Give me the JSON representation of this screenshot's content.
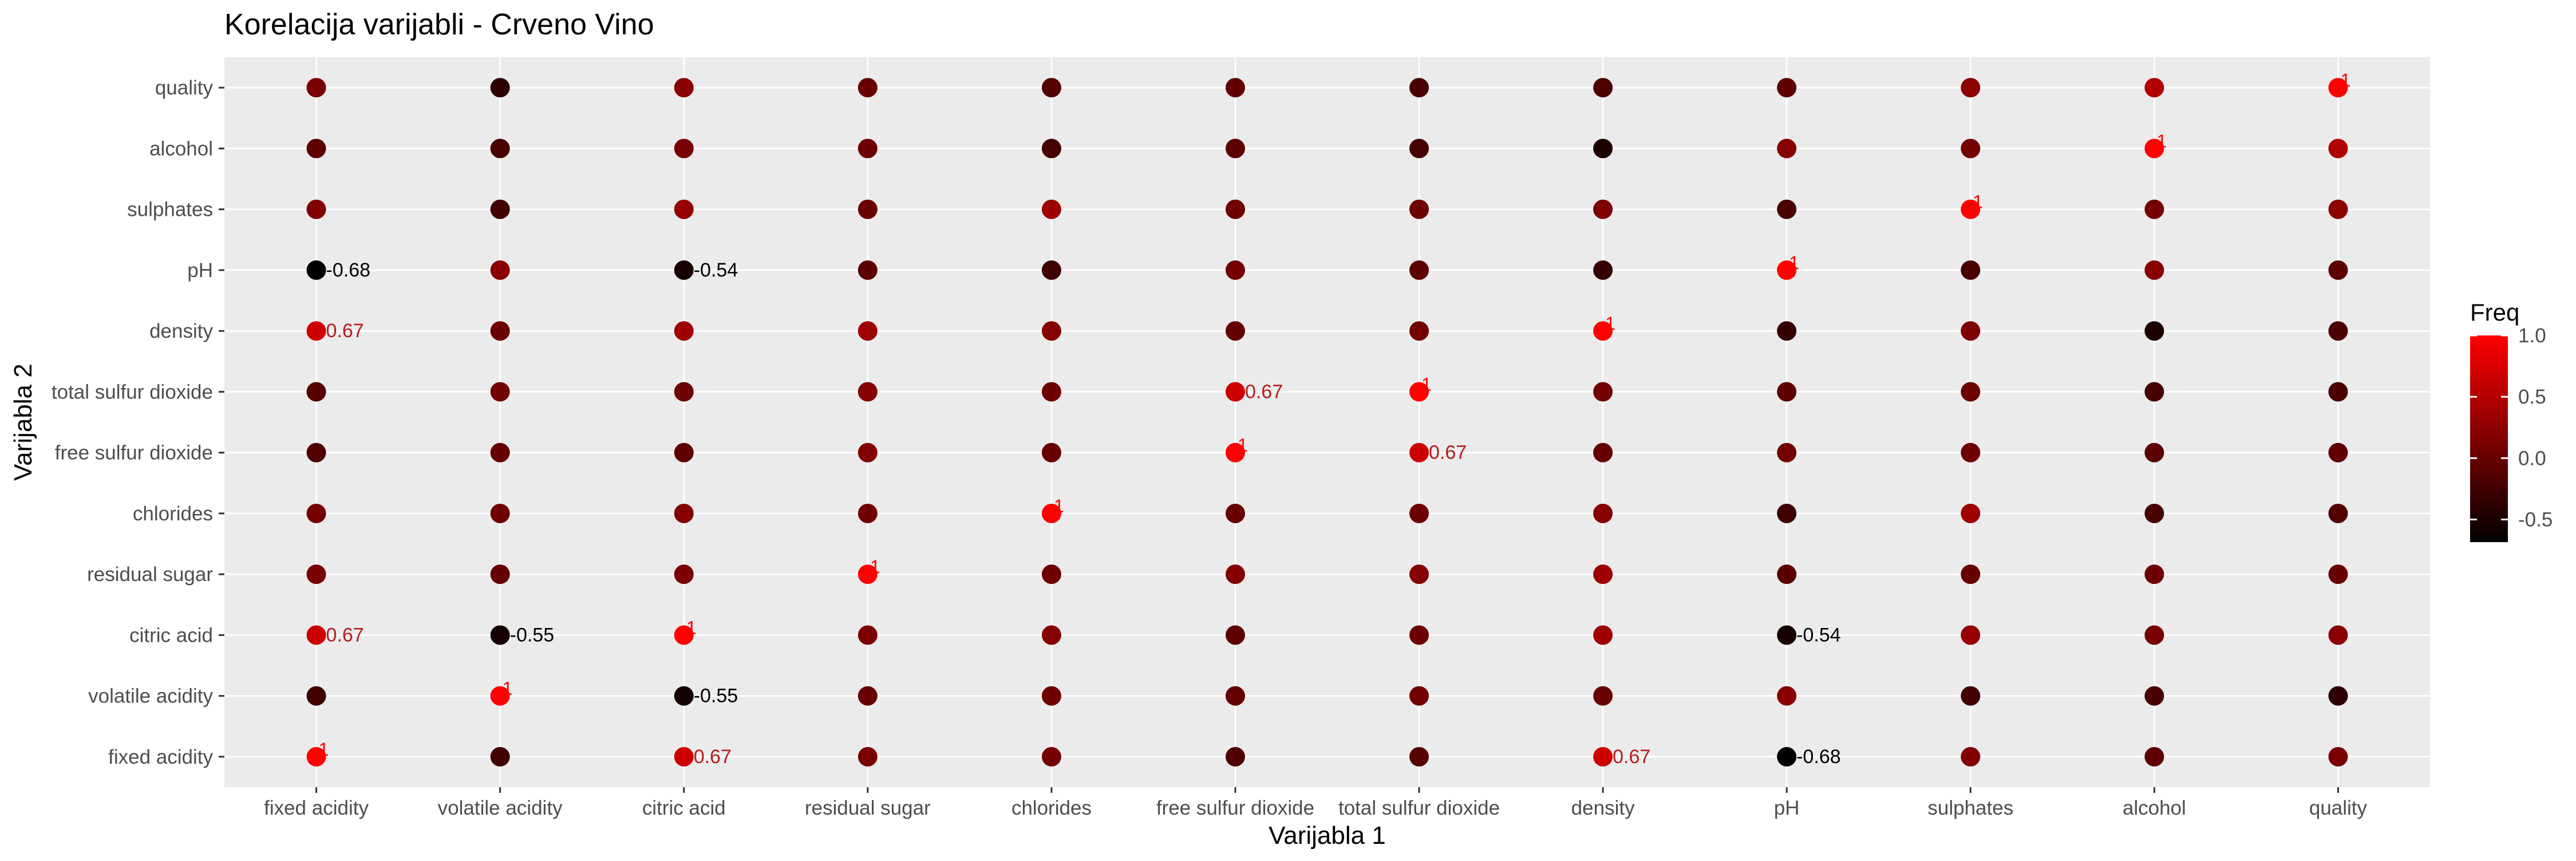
{
  "chart_data": {
    "type": "scatter",
    "title": "Korelacija varijabli - Crveno Vino",
    "xlabel": "Varijabla 1",
    "ylabel": "Varijabla 2",
    "variables": [
      "fixed acidity",
      "volatile acidity",
      "citric acid",
      "residual sugar",
      "chlorides",
      "free sulfur dioxide",
      "total sulfur dioxide",
      "density",
      "pH",
      "sulphates",
      "alcohol",
      "quality"
    ],
    "correlation_matrix": [
      [
        1.0,
        -0.26,
        0.67,
        0.11,
        0.09,
        -0.15,
        -0.11,
        0.67,
        -0.68,
        0.18,
        -0.06,
        0.12
      ],
      [
        -0.26,
        1.0,
        -0.55,
        0.0,
        0.06,
        -0.01,
        0.08,
        0.02,
        0.23,
        -0.26,
        -0.2,
        -0.39
      ],
      [
        0.67,
        -0.55,
        1.0,
        0.14,
        0.2,
        -0.06,
        0.04,
        0.36,
        -0.54,
        0.31,
        0.11,
        0.23
      ],
      [
        0.11,
        0.0,
        0.14,
        1.0,
        0.06,
        0.19,
        0.2,
        0.36,
        -0.09,
        0.01,
        0.04,
        0.01
      ],
      [
        0.09,
        0.06,
        0.2,
        0.06,
        1.0,
        0.01,
        0.05,
        0.2,
        -0.27,
        0.37,
        -0.22,
        -0.13
      ],
      [
        -0.15,
        -0.01,
        -0.06,
        0.19,
        0.01,
        1.0,
        0.67,
        -0.02,
        0.07,
        0.05,
        -0.07,
        -0.05
      ],
      [
        -0.11,
        0.08,
        0.04,
        0.2,
        0.05,
        0.67,
        1.0,
        0.07,
        -0.07,
        0.04,
        -0.21,
        -0.19
      ],
      [
        0.67,
        0.02,
        0.36,
        0.36,
        0.2,
        -0.02,
        0.07,
        1.0,
        -0.34,
        0.15,
        -0.5,
        -0.17
      ],
      [
        -0.68,
        0.23,
        -0.54,
        -0.09,
        -0.27,
        0.07,
        -0.07,
        -0.34,
        1.0,
        -0.2,
        0.21,
        -0.06
      ],
      [
        0.18,
        -0.26,
        0.31,
        0.01,
        0.37,
        0.05,
        0.04,
        0.15,
        -0.2,
        1.0,
        0.09,
        0.25
      ],
      [
        -0.06,
        -0.2,
        0.11,
        0.04,
        -0.22,
        -0.07,
        -0.21,
        -0.5,
        0.21,
        0.09,
        1.0,
        0.48
      ],
      [
        0.12,
        -0.39,
        0.23,
        0.01,
        -0.13,
        -0.05,
        -0.19,
        -0.17,
        -0.06,
        0.25,
        0.48,
        1.0
      ]
    ],
    "labels": [
      {
        "x": "fixed acidity",
        "y": "pH",
        "text": "-0.68"
      },
      {
        "x": "fixed acidity",
        "y": "density",
        "text": "0.67"
      },
      {
        "x": "fixed acidity",
        "y": "citric acid",
        "text": "0.67"
      },
      {
        "x": "volatile acidity",
        "y": "citric acid",
        "text": "-0.55"
      },
      {
        "x": "citric acid",
        "y": "pH",
        "text": "-0.54"
      },
      {
        "x": "citric acid",
        "y": "volatile acidity",
        "text": "-0.55"
      },
      {
        "x": "citric acid",
        "y": "fixed acidity",
        "text": "0.67"
      },
      {
        "x": "free sulfur dioxide",
        "y": "total sulfur dioxide",
        "text": "0.67"
      },
      {
        "x": "total sulfur dioxide",
        "y": "free sulfur dioxide",
        "text": "0.67"
      },
      {
        "x": "density",
        "y": "fixed acidity",
        "text": "0.67"
      },
      {
        "x": "pH",
        "y": "citric acid",
        "text": "-0.54"
      },
      {
        "x": "pH",
        "y": "fixed acidity",
        "text": "-0.68"
      }
    ],
    "diagonal_label": "1",
    "legend": {
      "title": "Freq",
      "ticks": [
        1.0,
        0.5,
        0.0,
        -0.5
      ],
      "tick_labels": [
        "1.0",
        "0.5",
        "0.0",
        "-0.5"
      ],
      "min": -0.68,
      "max": 1.0,
      "placement": "right"
    },
    "colors": {
      "low": "#000000",
      "high": "#ff0000",
      "label_positive": "#b71c1c",
      "label_negative": "#000000",
      "panel_background": "#ebebeb",
      "gridline": "#ffffff"
    },
    "grid": true
  }
}
